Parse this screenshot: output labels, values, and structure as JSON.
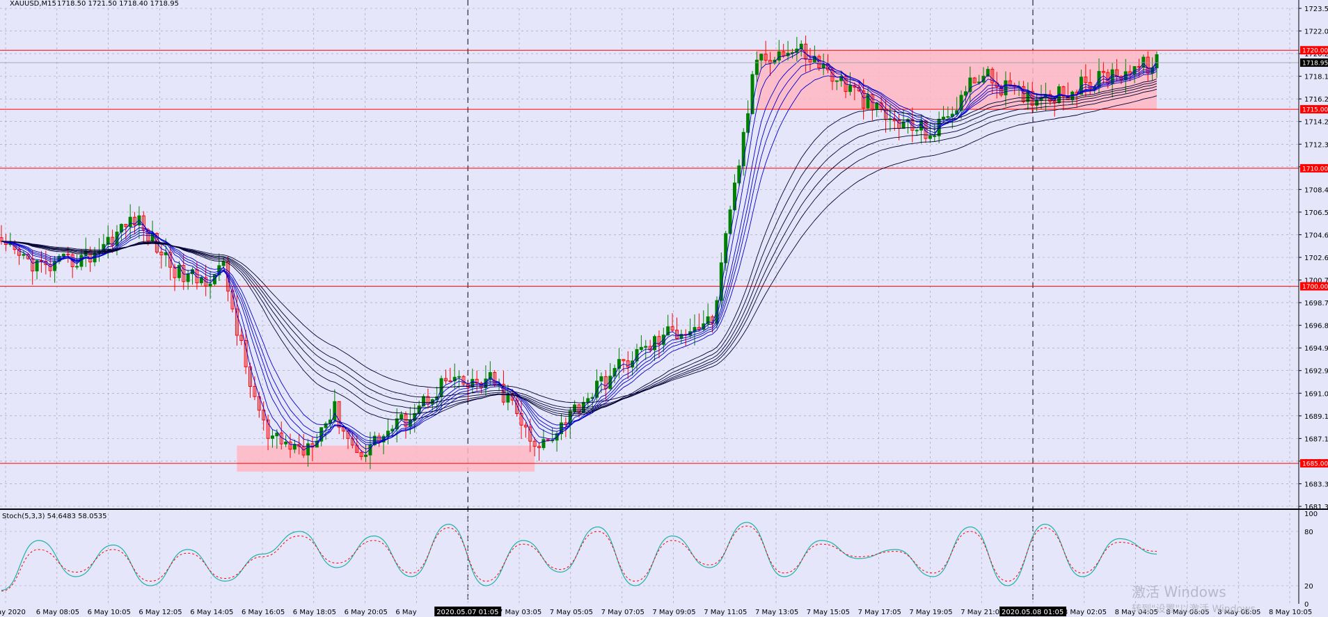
{
  "window": {
    "symbol_label": "XAUUSD,M15",
    "ohlc_label": "1718.50 1721.50 1718.40 1718.95",
    "indicator_label": "Stoch(5,3,3) 54.6483 58.0535"
  },
  "watermark": {
    "line1": "激活 Windows",
    "line2": "转到\"设置\"以激活 Windows。"
  },
  "colors": {
    "background": "#E6E6FA",
    "bull_candle": "#008000",
    "bear_candle": "#FF0000",
    "ma_ribbon_fast": "#0000CC",
    "ma_ribbon_slow": "#000033",
    "level_line": "#FF0000",
    "zone_fill": "#FFB6C1",
    "stoch_main": "#20B2AA",
    "stoch_signal": "#FF0000"
  },
  "chart_data": [
    {
      "type": "candlestick",
      "title": "XAUUSD,M15",
      "ylim": [
        1681.35,
        1723.55
      ],
      "price_ticks": [
        "1723.55",
        "1722.00",
        "1720.20",
        "1718.15",
        "1716.20",
        "1714.25",
        "1712.35",
        "1710.40",
        "1708.45",
        "1706.50",
        "1704.60",
        "1702.65",
        "1700.70",
        "1698.75",
        "1696.85",
        "1694.90",
        "1692.95",
        "1691.05",
        "1689.10",
        "1687.15",
        "1685.20",
        "1683.30",
        "1681.35"
      ],
      "horizontal_levels": [
        "1720.00",
        "1715.00",
        "1710.00",
        "1700.00",
        "1685.00"
      ],
      "current_price": "1718.95",
      "time_labels": [
        "5 May 2020",
        "6 May 08:05",
        "6 May 10:05",
        "6 May 12:05",
        "6 May 14:05",
        "6 May 16:05",
        "6 May 18:05",
        "6 May 20:05",
        "6 May",
        "2020.05.07 01:05",
        "7 May 03:05",
        "7 May 05:05",
        "7 May 07:05",
        "7 May 09:05",
        "7 May 11:05",
        "7 May 13:05",
        "7 May 15:05",
        "7 May 17:05",
        "7 May 19:05",
        "7 May 21:05",
        "2020.05.08 01:05",
        "8 May 02:05",
        "8 May 04:05",
        "8 May 06:05",
        "8 May 08:05",
        "8 May 10:05"
      ],
      "highlighted_time_labels": [
        "2020.05.07 01:05",
        "2020.05.08 01:05"
      ],
      "price_path_keypoints": {
        "bar_index": [
          0,
          10,
          20,
          30,
          40,
          45,
          50,
          55,
          60,
          68,
          75,
          80,
          90,
          100,
          105,
          110,
          115,
          120,
          130,
          140,
          150,
          160,
          170,
          180,
          190,
          200,
          210,
          220,
          230,
          240,
          250,
          260
        ],
        "close": [
          1703.2,
          1701.5,
          1702.6,
          1705.8,
          1701.0,
          1700.5,
          1701.5,
          1693.0,
          1687.0,
          1686.2,
          1689.5,
          1685.8,
          1688.5,
          1692.0,
          1691.5,
          1692.0,
          1690.0,
          1686.0,
          1690.0,
          1693.5,
          1696.0,
          1697.0,
          1719.5,
          1720.0,
          1717.0,
          1714.0,
          1713.0,
          1718.0,
          1716.0,
          1716.5,
          1718.0,
          1718.95
        ]
      },
      "zones": [
        {
          "from": "1684.30",
          "to": "1686.50",
          "span": "6 May 16:05 – 7 May 09:05"
        },
        {
          "from": "1715.00",
          "to": "1720.00",
          "span": "7 May 19:05 – 8 May 10:05"
        }
      ],
      "moving_averages": "ribbon of 12 exponential moving averages"
    },
    {
      "type": "line",
      "title": "Stoch(5,3,3) 54.6483 58.0535",
      "ylim": [
        0,
        100
      ],
      "y_ticks": [
        "100",
        "80",
        "20",
        "0"
      ],
      "series": [
        {
          "name": "Main",
          "values": [
            15,
            70,
            30,
            65,
            20,
            60,
            25,
            55,
            80,
            40,
            75,
            30,
            88,
            20,
            70,
            35,
            85,
            20,
            75,
            40,
            90,
            30,
            70,
            50,
            60,
            30,
            85,
            20,
            88,
            30,
            72,
            55
          ]
        },
        {
          "name": "Signal",
          "values": [
            14,
            60,
            35,
            60,
            25,
            56,
            28,
            52,
            75,
            45,
            70,
            34,
            84,
            25,
            66,
            38,
            80,
            25,
            70,
            43,
            86,
            34,
            66,
            52,
            58,
            34,
            80,
            25,
            84,
            34,
            68,
            58
          ]
        }
      ]
    }
  ]
}
